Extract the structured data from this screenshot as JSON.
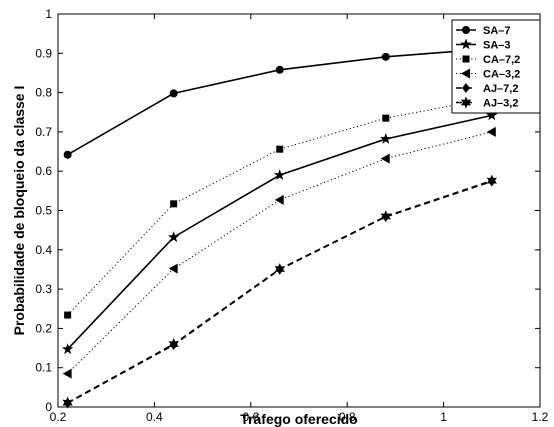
{
  "chart_data": {
    "type": "line",
    "xlabel": "Tráfego oferecido",
    "ylabel": "Probabilidade de bloqueio da classe I",
    "xlim": [
      0.2,
      1.2
    ],
    "ylim": [
      0,
      1
    ],
    "xticks": [
      "0.2",
      "0.4",
      "0.6",
      "0.8",
      "1",
      "1.2"
    ],
    "yticks": [
      "0",
      "0.1",
      "0.2",
      "0.3",
      "0.4",
      "0.5",
      "0.6",
      "0.7",
      "0.8",
      "0.9",
      "1"
    ],
    "grid": false,
    "legend_position": "top-right",
    "series": [
      {
        "name": "SA–7",
        "x": [
          0.22,
          0.44,
          0.66,
          0.88,
          1.1
        ],
        "y": [
          0.642,
          0.798,
          0.858,
          0.891,
          0.912
        ],
        "line": "solid",
        "marker": "circle"
      },
      {
        "name": "SA–3",
        "x": [
          0.22,
          0.44,
          0.66,
          0.88,
          1.1
        ],
        "y": [
          0.147,
          0.432,
          0.59,
          0.682,
          0.742
        ],
        "line": "solid",
        "marker": "star"
      },
      {
        "name": "CA–7,2",
        "x": [
          0.22,
          0.44,
          0.66,
          0.88,
          1.1
        ],
        "y": [
          0.234,
          0.517,
          0.656,
          0.735,
          0.786
        ],
        "line": "dotted",
        "marker": "square"
      },
      {
        "name": "CA–3,2",
        "x": [
          0.22,
          0.44,
          0.66,
          0.88,
          1.1
        ],
        "y": [
          0.085,
          0.352,
          0.527,
          0.632,
          0.7
        ],
        "line": "dotted",
        "marker": "triangle-left"
      },
      {
        "name": "AJ–7,2",
        "x": [
          0.22,
          0.44,
          0.66,
          0.88,
          1.1
        ],
        "y": [
          0.01,
          0.158,
          0.35,
          0.484,
          0.574
        ],
        "line": "dashed",
        "marker": "diamond"
      },
      {
        "name": "AJ–3,2",
        "x": [
          0.22,
          0.44,
          0.66,
          0.88,
          1.1
        ],
        "y": [
          0.011,
          0.16,
          0.351,
          0.485,
          0.576
        ],
        "line": "dashed",
        "marker": "hexagram"
      }
    ]
  }
}
